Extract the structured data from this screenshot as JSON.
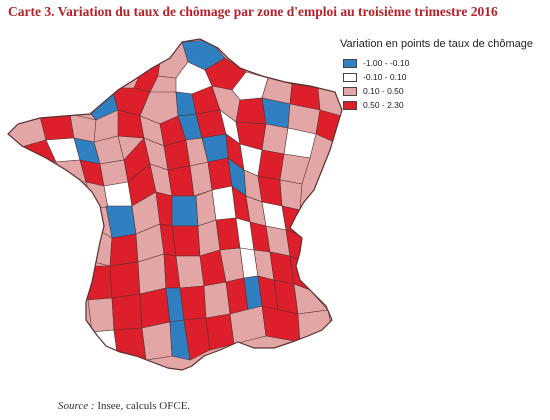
{
  "title": "Carte 3. Variation du taux de chômage par zone d'emploi au troisième trimestre 2016",
  "legend": {
    "title": "Variation en points de taux de chômage",
    "items": [
      {
        "label": "-1.00 - -0.10",
        "color": "#2f7fc1"
      },
      {
        "label": "-0.10 - 0.10",
        "color": "#ffffff"
      },
      {
        "label": "0.10 - 0.50",
        "color": "#e3a6a6"
      },
      {
        "label": "0.50 - 2.30",
        "color": "#dc1f2b"
      }
    ]
  },
  "source": {
    "label": "Source :",
    "text": " Insee, calculs OFCE."
  },
  "map": {
    "region": "France métropolitaine",
    "zones_shown": "zones d'emploi",
    "border_color": "#5a3030"
  }
}
